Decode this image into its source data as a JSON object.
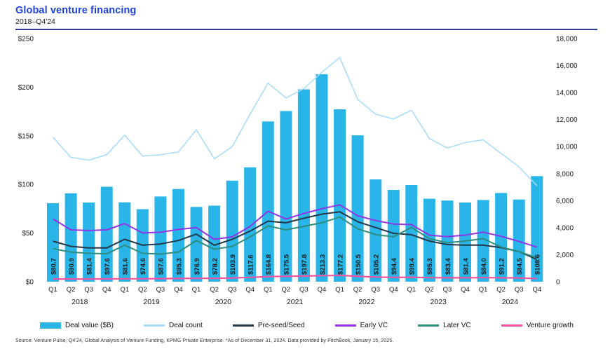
{
  "header": {
    "title": "Global venture financing",
    "subtitle": "2018–Q4'24"
  },
  "colors": {
    "title": "#1f41de",
    "rule": "#2b3a96",
    "bar": "#29b5e8",
    "deal_count": "#a9def8",
    "pre_seed": "#243746",
    "early_vc": "#9233e6",
    "later_vc": "#2f8c7c",
    "venture_growth": "#f4519e",
    "axis_text": "#1a1a1a"
  },
  "chart_data": {
    "type": "combo: bar (left axis) + line (right axis)",
    "title": "Global venture financing",
    "subtitle": "2018–Q4'24",
    "categories": [
      "Q1 2018",
      "Q2 2018",
      "Q3 2018",
      "Q4 2018",
      "Q1 2019",
      "Q2 2019",
      "Q3 2019",
      "Q4 2019",
      "Q1 2020",
      "Q2 2020",
      "Q3 2020",
      "Q4 2020",
      "Q1 2021",
      "Q2 2021",
      "Q3 2021",
      "Q4 2021",
      "Q1 2022",
      "Q2 2022",
      "Q3 2022",
      "Q4 2022",
      "Q1 2023",
      "Q2 2023",
      "Q3 2023",
      "Q4 2023",
      "Q1 2024",
      "Q2 2024",
      "Q3 2024",
      "Q4 2024"
    ],
    "quarter_labels": [
      "Q1",
      "Q2",
      "Q3",
      "Q4"
    ],
    "year_labels": [
      "2018",
      "2019",
      "2020",
      "2021",
      "2022",
      "2023",
      "2024"
    ],
    "bar_series": {
      "name": "Deal value ($B)",
      "axis": "left",
      "label_prefix": "$",
      "values": [
        80.7,
        90.9,
        81.4,
        97.6,
        81.6,
        74.6,
        87.6,
        95.3,
        76.9,
        78.2,
        103.9,
        117.6,
        164.8,
        175.5,
        197.8,
        213.3,
        177.2,
        150.5,
        105.2,
        94.4,
        99.4,
        85.3,
        83.4,
        81.4,
        84.0,
        91.2,
        84.5,
        108.6
      ]
    },
    "line_series": [
      {
        "name": "Deal count",
        "axis": "right",
        "color_key": "deal_count",
        "stroke_width": 1.6,
        "values": [
          10700,
          9200,
          9000,
          9400,
          10850,
          9300,
          9400,
          9600,
          11250,
          9100,
          10000,
          12400,
          14700,
          13600,
          14300,
          15500,
          16600,
          13500,
          12400,
          12050,
          12700,
          10600,
          9900,
          10300,
          10500,
          9500,
          8500,
          7100
        ]
      },
      {
        "name": "Pre-seed/Seed",
        "axis": "right",
        "color_key": "pre_seed",
        "stroke_width": 2,
        "values": [
          3000,
          2620,
          2500,
          2500,
          3140,
          2710,
          2790,
          3050,
          3520,
          2700,
          3140,
          3750,
          4480,
          4360,
          4700,
          5000,
          5170,
          4440,
          4010,
          3580,
          3480,
          3010,
          2750,
          2710,
          2710,
          2520,
          2230,
          1650
        ]
      },
      {
        "name": "Early VC",
        "axis": "right",
        "color_key": "early_vc",
        "stroke_width": 2,
        "values": [
          4650,
          3840,
          3790,
          3840,
          4300,
          3610,
          3660,
          3870,
          4010,
          3140,
          3320,
          4100,
          5220,
          4650,
          5050,
          5400,
          5690,
          4880,
          4530,
          4270,
          4230,
          3450,
          3330,
          3450,
          3670,
          3360,
          2980,
          2570
        ]
      },
      {
        "name": "Later VC",
        "axis": "right",
        "color_key": "later_vc",
        "stroke_width": 2,
        "values": [
          2450,
          2190,
          2100,
          2070,
          2710,
          2100,
          2050,
          2190,
          3050,
          2400,
          2620,
          3320,
          4130,
          3840,
          4100,
          4360,
          4790,
          3920,
          3490,
          3320,
          4020,
          3190,
          2890,
          3010,
          3190,
          2570,
          2230,
          1760
        ]
      },
      {
        "name": "Venture growth",
        "axis": "right",
        "color_key": "venture_growth",
        "stroke_width": 2.2,
        "values": [
          200,
          200,
          200,
          210,
          220,
          220,
          230,
          240,
          250,
          250,
          280,
          320,
          380,
          400,
          420,
          450,
          470,
          400,
          350,
          320,
          330,
          300,
          290,
          290,
          300,
          290,
          280,
          230
        ]
      }
    ],
    "left_axis": {
      "ticks": [
        "$0",
        "$50",
        "$100",
        "$150",
        "$200",
        "$250"
      ],
      "range": [
        0,
        250
      ],
      "tick_step": 50
    },
    "right_axis": {
      "ticks": [
        "0",
        "2,000",
        "4,000",
        "6,000",
        "8,000",
        "10,000",
        "12,000",
        "14,000",
        "16,000",
        "18,000"
      ],
      "range": [
        0,
        18000
      ],
      "tick_step": 2000
    },
    "grid": false,
    "legend_position": "bottom"
  },
  "legend": {
    "items": [
      {
        "label": "Deal value ($B)",
        "swatch": "bar",
        "color_key": "bar"
      },
      {
        "label": "Deal count",
        "swatch": "line",
        "color_key": "deal_count"
      },
      {
        "label": "Pre-seed/Seed",
        "swatch": "line",
        "color_key": "pre_seed"
      },
      {
        "label": "Early VC",
        "swatch": "line",
        "color_key": "early_vc"
      },
      {
        "label": "Later VC",
        "swatch": "line",
        "color_key": "later_vc"
      },
      {
        "label": "Venture growth",
        "swatch": "line",
        "color_key": "venture_growth"
      }
    ]
  },
  "source_note": "Source: Venture Pulse, Q4'24, Global Analysis of Venture Funding, KPMG Private Enterprise. *As of December 31, 2024. Data provided by PitchBook, January 15, 2025."
}
